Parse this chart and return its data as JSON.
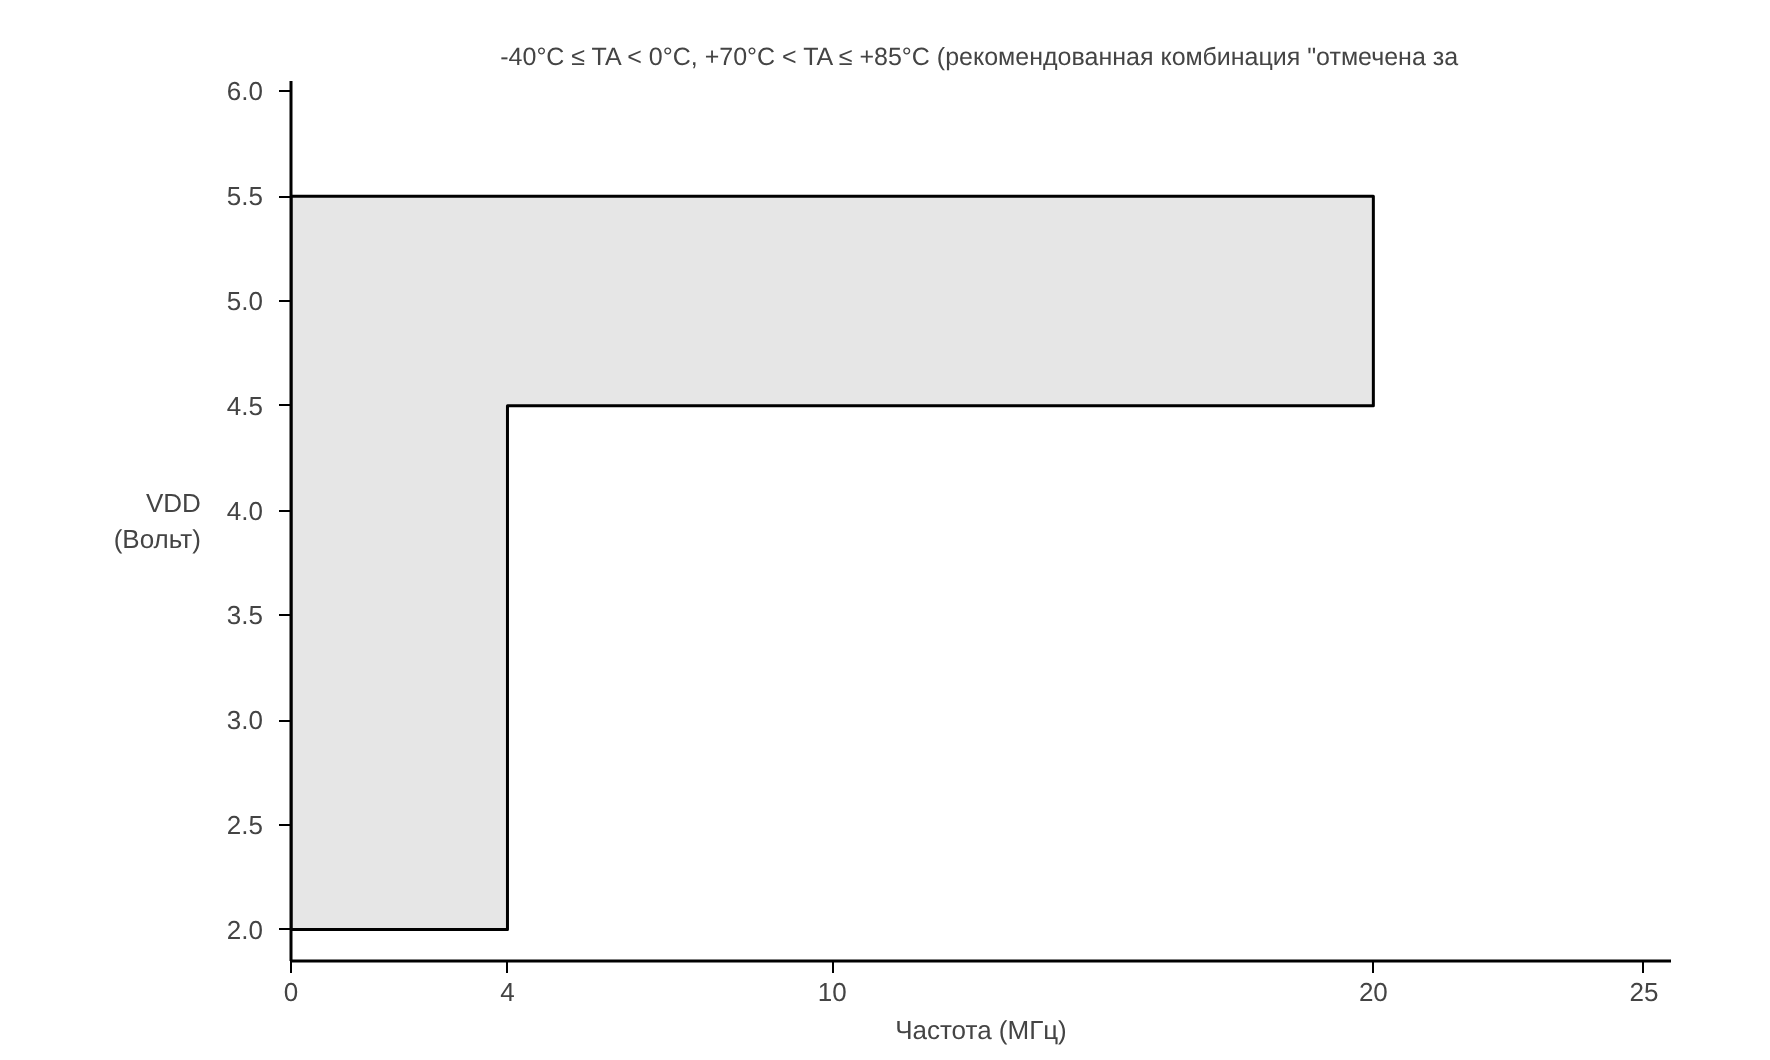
{
  "chart_data": {
    "type": "area",
    "title": "-40°C ≤ TA < 0°C, +70°C < TA ≤ +85°C (рекомендованная комбинация \"отмечена за",
    "xlabel": "Частота (МГц)",
    "ylabel": "VDD\n(Вольт)",
    "series": [
      {
        "color": "#e6e6e6",
        "x": [
          0,
          0,
          20,
          20,
          4,
          4
        ],
        "values": [
          2.0,
          5.5,
          5.5,
          4.5,
          4.5,
          2.0
        ]
      }
    ],
    "xlim": [
      0,
      25.5
    ],
    "ylim": [
      1.85,
      6.05
    ],
    "xticks": [
      0,
      4,
      10,
      20,
      25
    ],
    "yticks": [
      {
        "value": 2,
        "label": "2.0"
      },
      {
        "value": 2.5,
        "label": "2.5"
      },
      {
        "value": 3,
        "label": "3.0"
      },
      {
        "value": 3.5,
        "label": "3.5"
      },
      {
        "value": 4,
        "label": "4.0"
      },
      {
        "value": 4.5,
        "label": "4.5"
      },
      {
        "value": 5,
        "label": "5.0"
      },
      {
        "value": 5.5,
        "label": "5.5"
      },
      {
        "value": 6,
        "label": "6.0"
      }
    ],
    "grid": false
  }
}
